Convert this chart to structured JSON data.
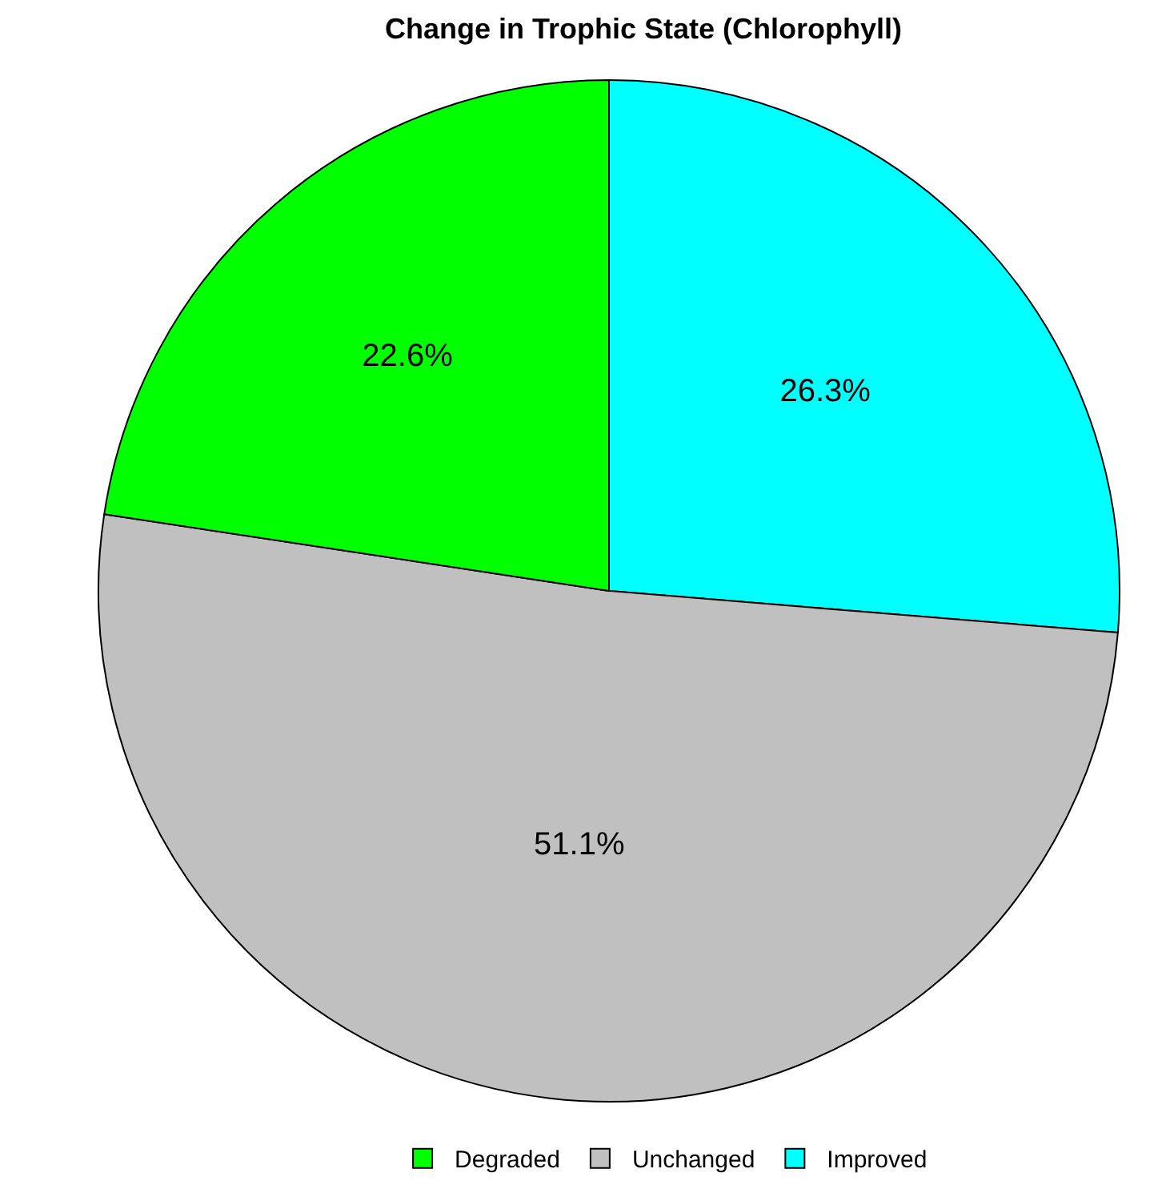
{
  "chart_data": {
    "type": "pie",
    "title": "Change in Trophic State (Chlorophyll)",
    "categories": [
      "Improved",
      "Unchanged",
      "Degraded"
    ],
    "values": [
      26.3,
      51.1,
      22.6
    ],
    "colors": [
      "#00ffff",
      "#c0c0c0",
      "#00ff00"
    ],
    "value_labels": [
      "26.3%",
      "51.1%",
      "22.6%"
    ],
    "legend": "bottom"
  }
}
